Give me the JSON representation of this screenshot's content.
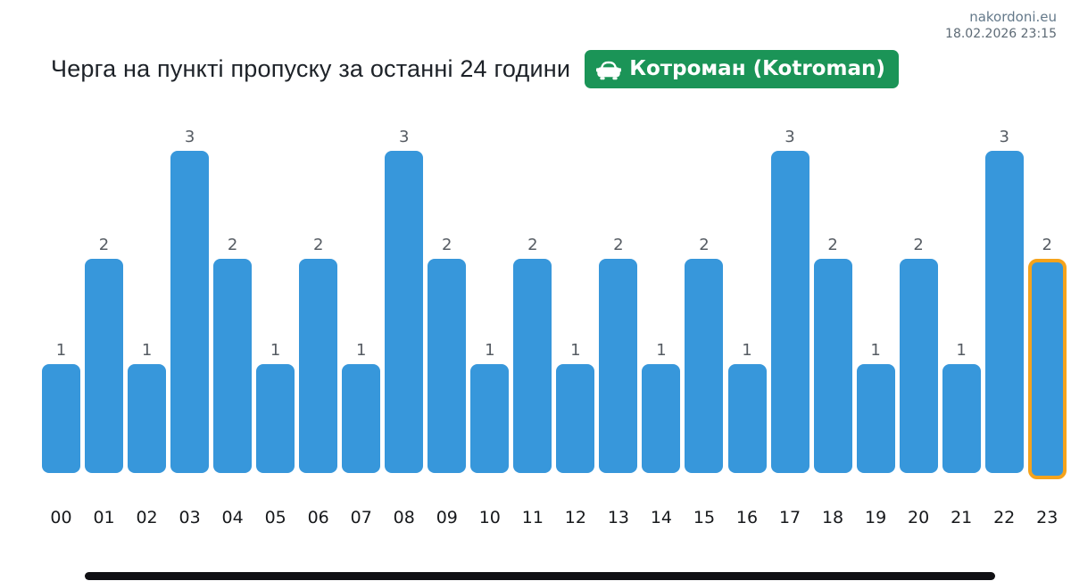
{
  "header": {
    "site": "nakordoni.eu",
    "timestamp": "18.02.2026 23:15"
  },
  "title": {
    "text": "Черга на пункті пропуску за останні 24 години",
    "badge": {
      "label": "Котроман (Kotroman)",
      "icon": "car-front-icon",
      "background_color": "#1b9457",
      "text_color": "#ffffff"
    }
  },
  "chart_data": {
    "type": "bar",
    "title": "Черга на пункті пропуску за останні 24 години",
    "categories": [
      "00",
      "01",
      "02",
      "03",
      "04",
      "05",
      "06",
      "07",
      "08",
      "09",
      "10",
      "11",
      "12",
      "13",
      "14",
      "15",
      "16",
      "17",
      "18",
      "19",
      "20",
      "21",
      "22",
      "23"
    ],
    "values": [
      1,
      2,
      1,
      3,
      2,
      1,
      2,
      1,
      3,
      2,
      1,
      2,
      1,
      2,
      1,
      2,
      1,
      3,
      2,
      1,
      2,
      1,
      3,
      2
    ],
    "xlabel": "",
    "ylabel": "",
    "ylim": [
      0,
      3
    ],
    "grid": false,
    "legend": false,
    "value_labels_shown": true,
    "bar_color": "#3797db",
    "value_label_color": "#565c63",
    "highlight_index": 23,
    "highlight_color": "#f5a31c"
  },
  "footer": {
    "scrollbar_color": "#101014"
  }
}
